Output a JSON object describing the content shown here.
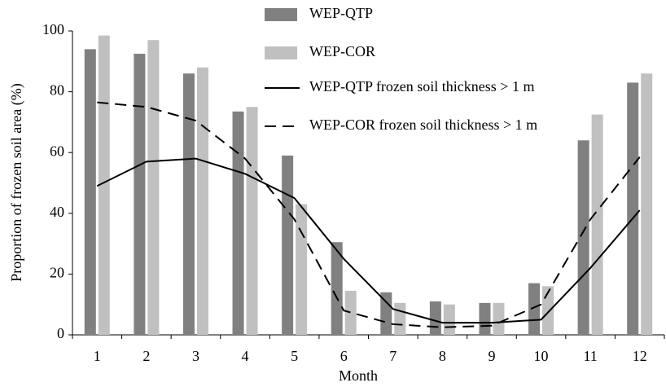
{
  "chart_data": {
    "type": "bar-line",
    "x_label": "Month",
    "y_label": "Proportion of frozen soil area  (%)",
    "categories": [
      "1",
      "2",
      "3",
      "4",
      "5",
      "6",
      "7",
      "8",
      "9",
      "10",
      "11",
      "12"
    ],
    "series": [
      {
        "name": "WEP-QTP",
        "kind": "bar",
        "color": "#808080",
        "values": [
          94,
          92.5,
          86,
          73.5,
          59,
          30.5,
          14,
          11,
          10.5,
          17,
          64,
          83
        ]
      },
      {
        "name": "WEP-COR",
        "kind": "bar",
        "color": "#c0c0c0",
        "values": [
          98.5,
          97,
          88,
          75,
          43,
          14.5,
          10.5,
          10,
          10.5,
          16,
          72.5,
          86
        ]
      },
      {
        "name": "WEP-QTP frozen soil thickness > 1 m",
        "kind": "line",
        "dash": "solid",
        "color": "#000000",
        "values": [
          49,
          57,
          58,
          53,
          45,
          25,
          8.5,
          4,
          4,
          5,
          22,
          41
        ]
      },
      {
        "name": "WEP-COR frozen soil thickness > 1 m",
        "kind": "line",
        "dash": "dashed",
        "color": "#000000",
        "values": [
          76.5,
          75,
          70.5,
          58,
          38,
          8,
          3.5,
          2.5,
          3,
          10,
          38,
          58.5
        ]
      }
    ],
    "ylim": [
      0,
      100
    ],
    "yticks": [
      0,
      20,
      40,
      60,
      80,
      100
    ],
    "grid": false
  }
}
